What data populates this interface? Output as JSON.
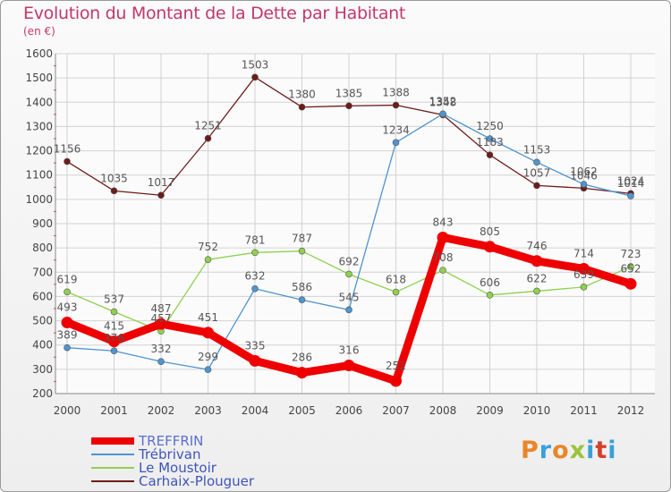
{
  "title": "Evolution du Montant de la Dette par Habitant",
  "subtitle": "(en €)",
  "logo": {
    "text": "Proxiti",
    "colors": [
      "#e8862a",
      "#3aa0d8",
      "#e8862a",
      "#9ac43b",
      "#3aa0d8",
      "#d4402c",
      "#3aa0d8"
    ]
  },
  "chart_data": {
    "type": "line",
    "title": "Evolution du Montant de la Dette par Habitant",
    "ylabel": "(en €)",
    "x": [
      "2000",
      "2001",
      "2002",
      "2003",
      "2004",
      "2005",
      "2006",
      "2007",
      "2008",
      "2009",
      "2010",
      "2011",
      "2012"
    ],
    "yticks": [
      200,
      300,
      400,
      500,
      600,
      700,
      800,
      900,
      1000,
      1100,
      1200,
      1300,
      1400,
      1500,
      1600
    ],
    "ylim": [
      200,
      1600
    ],
    "grid": true,
    "series": [
      {
        "name": "TREFFRIN",
        "color": "#ee0000",
        "values": [
          493,
          415,
          487,
          451,
          335,
          286,
          316,
          252,
          843,
          805,
          746,
          714,
          652
        ],
        "labels": [
          "493",
          "415",
          "487",
          "451",
          "335",
          "286",
          "316",
          "252",
          "843",
          "805",
          "746",
          "714",
          "652"
        ]
      },
      {
        "name": "Trébrivan",
        "color": "#4f94cf",
        "values": [
          389,
          376,
          332,
          299,
          632,
          586,
          545,
          1234,
          1352,
          1250,
          1153,
          1062,
          1014
        ],
        "labels": [
          "389",
          "376",
          "332",
          "299",
          "632",
          "586",
          "545",
          "1234",
          "1352",
          "1250",
          "1153",
          "1062",
          "1014"
        ]
      },
      {
        "name": "Le Moustoir",
        "color": "#8fd14f",
        "values": [
          619,
          537,
          457,
          752,
          781,
          787,
          692,
          618,
          708,
          606,
          622,
          639,
          723
        ],
        "labels": [
          "619",
          "537",
          "457",
          "752",
          "781",
          "787",
          "692",
          "618",
          "708",
          "606",
          "622",
          "639",
          "723"
        ]
      },
      {
        "name": "Carhaix-Plouguer",
        "color": "#6e1b1b",
        "values": [
          1156,
          1035,
          1017,
          1251,
          1503,
          1380,
          1385,
          1388,
          1348,
          1183,
          1057,
          1046,
          1024
        ],
        "labels": [
          "1156",
          "1035",
          "1017",
          "1251",
          "1503",
          "1380",
          "1385",
          "1388",
          "1348",
          "1183",
          "1057",
          "1046",
          "1024"
        ]
      }
    ],
    "legend": "bottom-left"
  }
}
